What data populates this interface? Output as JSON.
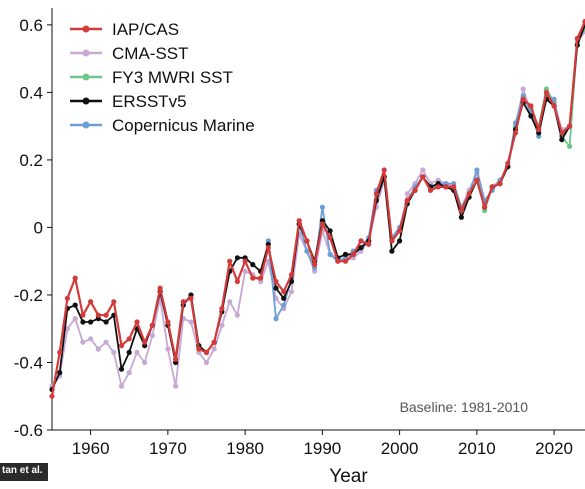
{
  "chart_data": {
    "type": "line",
    "xlabel": "Year",
    "ylabel": "",
    "xlim": [
      1955,
      2024
    ],
    "ylim": [
      -0.6,
      0.65
    ],
    "xticks": [
      "1960",
      "1970",
      "1980",
      "1990",
      "2000",
      "2010",
      "2020"
    ],
    "yticks": [
      "0.6",
      "0.4",
      "0.2",
      "0",
      "-0.2",
      "-0.4",
      "-0.6"
    ],
    "legend_position": "top-left",
    "annotation": "Baseline: 1981-2010",
    "series": [
      {
        "name": "IAP/CAS",
        "color": "#d43a3a",
        "x": [
          1955,
          1956,
          1957,
          1958,
          1959,
          1960,
          1961,
          1962,
          1963,
          1964,
          1965,
          1966,
          1967,
          1968,
          1969,
          1970,
          1971,
          1972,
          1973,
          1974,
          1975,
          1976,
          1977,
          1978,
          1979,
          1980,
          1981,
          1982,
          1983,
          1984,
          1985,
          1986,
          1987,
          1988,
          1989,
          1990,
          1991,
          1992,
          1993,
          1994,
          1995,
          1996,
          1997,
          1998,
          1999,
          2000,
          2001,
          2002,
          2003,
          2004,
          2005,
          2006,
          2007,
          2008,
          2009,
          2010,
          2011,
          2012,
          2013,
          2014,
          2015,
          2016,
          2017,
          2018,
          2019,
          2020,
          2021,
          2022,
          2023,
          2024
        ],
        "y": [
          -0.5,
          -0.37,
          -0.21,
          -0.15,
          -0.26,
          -0.22,
          -0.26,
          -0.26,
          -0.22,
          -0.35,
          -0.33,
          -0.28,
          -0.34,
          -0.29,
          -0.18,
          -0.28,
          -0.39,
          -0.22,
          -0.21,
          -0.36,
          -0.37,
          -0.34,
          -0.24,
          -0.1,
          -0.16,
          -0.1,
          -0.15,
          -0.15,
          -0.06,
          -0.16,
          -0.19,
          -0.14,
          0.02,
          -0.04,
          -0.11,
          0.01,
          -0.03,
          -0.1,
          -0.1,
          -0.08,
          -0.04,
          -0.05,
          0.1,
          0.17,
          -0.04,
          -0.01,
          0.08,
          0.11,
          0.15,
          0.11,
          0.12,
          0.12,
          0.12,
          0.05,
          0.1,
          0.14,
          0.06,
          0.12,
          0.13,
          0.19,
          0.28,
          0.38,
          0.36,
          0.29,
          0.4,
          0.36,
          0.28,
          0.3,
          0.56,
          0.61
        ]
      },
      {
        "name": "CMA-SST",
        "color": "#c8a8d4",
        "x": [
          1955,
          1956,
          1957,
          1958,
          1959,
          1960,
          1961,
          1962,
          1963,
          1964,
          1965,
          1966,
          1967,
          1968,
          1969,
          1970,
          1971,
          1972,
          1973,
          1974,
          1975,
          1976,
          1977,
          1978,
          1979,
          1980,
          1981,
          1982,
          1983,
          1984,
          1985,
          1986,
          1987,
          1988,
          1989,
          1990,
          1991,
          1992,
          1993,
          1994,
          1995,
          1996,
          1997,
          1998,
          1999,
          2000,
          2001,
          2002,
          2003,
          2004,
          2005,
          2006,
          2007,
          2008,
          2009,
          2010,
          2011,
          2012,
          2013,
          2014,
          2015,
          2016,
          2017,
          2018,
          2019,
          2020,
          2021,
          2022,
          2023,
          2024
        ],
        "y": [
          -0.47,
          -0.44,
          -0.3,
          -0.27,
          -0.34,
          -0.33,
          -0.36,
          -0.34,
          -0.37,
          -0.47,
          -0.43,
          -0.37,
          -0.4,
          -0.32,
          -0.21,
          -0.36,
          -0.47,
          -0.27,
          -0.28,
          -0.37,
          -0.4,
          -0.36,
          -0.29,
          -0.22,
          -0.26,
          -0.13,
          -0.14,
          -0.16,
          -0.1,
          -0.21,
          -0.24,
          -0.19,
          -0.02,
          -0.07,
          -0.13,
          -0.01,
          -0.08,
          -0.09,
          -0.1,
          -0.09,
          -0.07,
          -0.04,
          0.06,
          0.14,
          -0.04,
          -0.01,
          0.1,
          0.13,
          0.17,
          0.13,
          0.14,
          0.13,
          0.12,
          0.06,
          0.11,
          0.16,
          0.07,
          0.12,
          0.14,
          0.18,
          0.3,
          0.41,
          0.34,
          0.3,
          0.39,
          0.37,
          0.29,
          0.3,
          0.55,
          0.58
        ]
      },
      {
        "name": "FY3 MWRI SST",
        "color": "#6ec78a",
        "x": [
          2011,
          2012,
          2013,
          2014,
          2015,
          2016,
          2017,
          2018,
          2019,
          2020,
          2021,
          2022,
          2023,
          2024
        ],
        "y": [
          0.05,
          0.12,
          0.13,
          0.18,
          0.3,
          0.38,
          0.35,
          0.3,
          0.41,
          0.37,
          0.27,
          0.24,
          0.55,
          0.59
        ]
      },
      {
        "name": "ERSSTv5",
        "color": "#111111",
        "x": [
          1955,
          1956,
          1957,
          1958,
          1959,
          1960,
          1961,
          1962,
          1963,
          1964,
          1965,
          1966,
          1967,
          1968,
          1969,
          1970,
          1971,
          1972,
          1973,
          1974,
          1975,
          1976,
          1977,
          1978,
          1979,
          1980,
          1981,
          1982,
          1983,
          1984,
          1985,
          1986,
          1987,
          1988,
          1989,
          1990,
          1991,
          1992,
          1993,
          1994,
          1995,
          1996,
          1997,
          1998,
          1999,
          2000,
          2001,
          2002,
          2003,
          2004,
          2005,
          2006,
          2007,
          2008,
          2009,
          2010,
          2011,
          2012,
          2013,
          2014,
          2015,
          2016,
          2017,
          2018,
          2019,
          2020,
          2021,
          2022,
          2023,
          2024
        ],
        "y": [
          -0.48,
          -0.43,
          -0.24,
          -0.23,
          -0.28,
          -0.28,
          -0.27,
          -0.28,
          -0.26,
          -0.42,
          -0.37,
          -0.3,
          -0.35,
          -0.29,
          -0.19,
          -0.29,
          -0.4,
          -0.23,
          -0.2,
          -0.35,
          -0.37,
          -0.34,
          -0.25,
          -0.13,
          -0.09,
          -0.09,
          -0.11,
          -0.13,
          -0.05,
          -0.18,
          -0.21,
          -0.16,
          0.01,
          -0.04,
          -0.1,
          0.02,
          -0.01,
          -0.09,
          -0.08,
          -0.08,
          -0.06,
          -0.04,
          0.08,
          0.15,
          -0.07,
          -0.04,
          0.07,
          0.11,
          0.15,
          0.12,
          0.13,
          0.12,
          0.11,
          0.03,
          0.09,
          0.14,
          0.06,
          0.12,
          0.13,
          0.18,
          0.29,
          0.37,
          0.33,
          0.28,
          0.38,
          0.36,
          0.26,
          0.3,
          0.54,
          0.6
        ]
      },
      {
        "name": "Copernicus Marine",
        "color": "#6e9fd4",
        "x": [
          1983,
          1984,
          1985,
          1986,
          1987,
          1988,
          1989,
          1990,
          1991,
          1992,
          1993,
          1994,
          1995,
          1996,
          1997,
          1998,
          1999,
          2000,
          2001,
          2002,
          2003,
          2004,
          2005,
          2006,
          2007,
          2008,
          2009,
          2010,
          2011,
          2012,
          2013,
          2014,
          2015,
          2016,
          2017,
          2018,
          2019,
          2020,
          2021,
          2022
        ],
        "y": [
          -0.04,
          -0.27,
          -0.23,
          -0.15,
          0.01,
          -0.07,
          -0.12,
          0.06,
          -0.08,
          -0.1,
          -0.09,
          -0.07,
          -0.06,
          -0.03,
          0.11,
          0.15,
          -0.03,
          0.0,
          0.08,
          0.12,
          0.15,
          0.11,
          0.13,
          0.13,
          0.13,
          0.06,
          0.1,
          0.17,
          0.08,
          0.11,
          0.14,
          0.18,
          0.31,
          0.39,
          0.34,
          0.27,
          0.39,
          0.38,
          0.27,
          0.3
        ]
      }
    ]
  },
  "credit": "tan et al."
}
